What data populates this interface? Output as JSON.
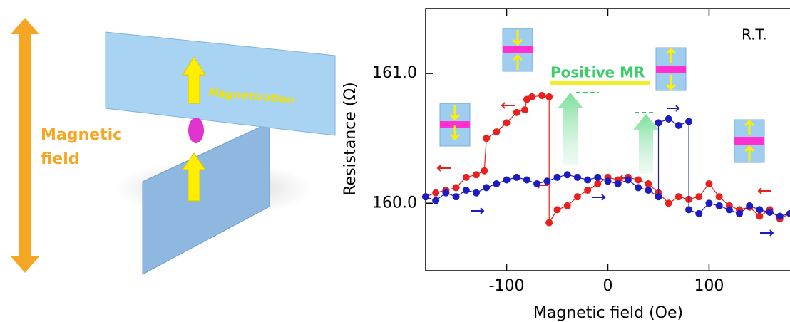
{
  "diagram": {
    "field_label": [
      "Magnetic",
      "field"
    ],
    "magnetization_label": "Magnetization"
  },
  "chart_data": {
    "type": "scatter",
    "x_label": "Magnetic field (Oe)",
    "y_label": "Resistance (Ω)",
    "annotations": [
      "R.T.",
      "Positive MR"
    ],
    "xlim": [
      -180,
      180
    ],
    "xticks": [
      -100,
      0,
      100
    ],
    "ylim": [
      159.48,
      161.5
    ],
    "yticks": [
      {
        "value": 160,
        "label": "160.0"
      },
      {
        "value": 161,
        "label": "161.0"
      }
    ],
    "series": [
      {
        "color": "#e8201e",
        "x": [
          180,
          170,
          160,
          150,
          140,
          130,
          120,
          110,
          100,
          90,
          80,
          70,
          60,
          50,
          40,
          30,
          20,
          10,
          0,
          -10,
          -20,
          -30,
          -40,
          -50,
          -58,
          -58,
          -65,
          -75,
          -80,
          -82,
          -90,
          -100,
          -110,
          -120,
          -122,
          -130,
          -140,
          -150,
          -160,
          -170,
          -180
        ],
        "values": [
          159.92,
          159.88,
          159.95,
          159.9,
          159.97,
          159.95,
          159.98,
          160.05,
          160.15,
          160.05,
          160.03,
          160.05,
          160.0,
          160.08,
          160.15,
          160.18,
          160.2,
          160.18,
          160.2,
          160.15,
          160.1,
          160.05,
          159.98,
          159.95,
          159.85,
          160.82,
          160.83,
          160.82,
          160.8,
          160.72,
          160.7,
          160.62,
          160.55,
          160.5,
          160.25,
          160.22,
          160.2,
          160.12,
          160.1,
          160.08,
          160.05
        ]
      },
      {
        "color": "#1c1cc0",
        "x": [
          -180,
          -170,
          -160,
          -150,
          -140,
          -130,
          -120,
          -110,
          -100,
          -90,
          -80,
          -70,
          -60,
          -50,
          -40,
          -30,
          -20,
          -10,
          0,
          10,
          20,
          30,
          40,
          50,
          50,
          60,
          70,
          80,
          80,
          90,
          100,
          110,
          120,
          130,
          140,
          150,
          160,
          170,
          180
        ],
        "values": [
          160.05,
          160.02,
          160.08,
          160.05,
          160.1,
          160.08,
          160.12,
          160.15,
          160.18,
          160.2,
          160.18,
          160.15,
          160.17,
          160.2,
          160.22,
          160.2,
          160.18,
          160.2,
          160.17,
          160.15,
          160.18,
          160.12,
          160.1,
          160.05,
          160.62,
          160.65,
          160.6,
          160.63,
          159.95,
          159.92,
          160.0,
          159.98,
          159.95,
          159.92,
          159.98,
          159.95,
          159.93,
          159.9,
          159.92
        ]
      }
    ]
  }
}
